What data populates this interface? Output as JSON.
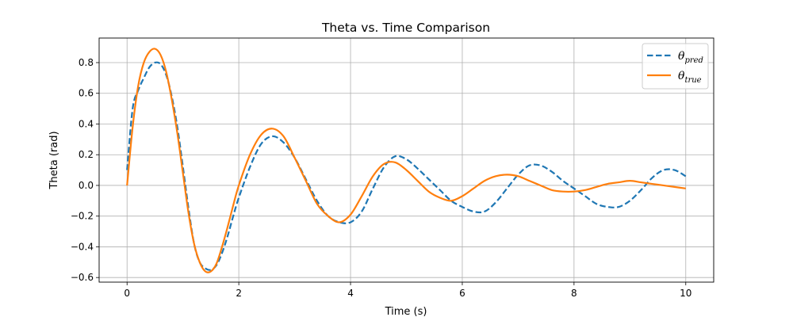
{
  "chart_data": {
    "type": "line",
    "title": "Theta vs. Time Comparison",
    "xlabel": "Time (s)",
    "ylabel": "Theta (rad)",
    "xlim": [
      -0.5,
      10.5
    ],
    "ylim": [
      -0.63,
      0.96
    ],
    "xticks": [
      0,
      2,
      4,
      6,
      8,
      10
    ],
    "xtick_labels": [
      "0",
      "2",
      "4",
      "6",
      "8",
      "10"
    ],
    "yticks": [
      -0.6,
      -0.4,
      -0.2,
      0.0,
      0.2,
      0.4,
      0.6,
      0.8
    ],
    "ytick_labels": [
      "−0.6",
      "−0.4",
      "−0.2",
      "0.0",
      "0.2",
      "0.4",
      "0.6",
      "0.8"
    ],
    "grid": true,
    "legend_position": "top-right",
    "series": [
      {
        "name": "θ",
        "subscript": "pred",
        "color": "#1f77b4",
        "style": "dashed",
        "x": [
          0,
          0.1,
          0.2,
          0.3,
          0.4,
          0.5,
          0.6,
          0.7,
          0.8,
          0.9,
          1.0,
          1.1,
          1.2,
          1.3,
          1.4,
          1.5,
          1.6,
          1.7,
          1.8,
          1.9,
          2.0,
          2.2,
          2.4,
          2.6,
          2.8,
          3.0,
          3.2,
          3.4,
          3.6,
          3.8,
          4.0,
          4.2,
          4.4,
          4.6,
          4.8,
          5.0,
          5.2,
          5.4,
          5.6,
          5.8,
          6.0,
          6.2,
          6.4,
          6.6,
          6.8,
          7.0,
          7.2,
          7.4,
          7.6,
          7.8,
          8.0,
          8.2,
          8.4,
          8.6,
          8.8,
          9.0,
          9.2,
          9.4,
          9.6,
          9.8,
          10.0
        ],
        "y": [
          0.1,
          0.5,
          0.62,
          0.7,
          0.77,
          0.8,
          0.79,
          0.72,
          0.58,
          0.38,
          0.12,
          -0.15,
          -0.38,
          -0.5,
          -0.54,
          -0.55,
          -0.52,
          -0.44,
          -0.33,
          -0.2,
          -0.08,
          0.12,
          0.27,
          0.32,
          0.28,
          0.18,
          0.04,
          -0.1,
          -0.2,
          -0.24,
          -0.24,
          -0.17,
          -0.02,
          0.12,
          0.19,
          0.17,
          0.11,
          0.04,
          -0.03,
          -0.1,
          -0.14,
          -0.17,
          -0.17,
          -0.11,
          -0.02,
          0.07,
          0.13,
          0.13,
          0.09,
          0.03,
          -0.02,
          -0.07,
          -0.12,
          -0.14,
          -0.14,
          -0.1,
          -0.03,
          0.05,
          0.1,
          0.1,
          0.06
        ]
      },
      {
        "name": "θ",
        "subscript": "true",
        "color": "#ff7f0e",
        "style": "solid",
        "x": [
          0,
          0.1,
          0.2,
          0.3,
          0.4,
          0.5,
          0.6,
          0.7,
          0.8,
          0.9,
          1.0,
          1.1,
          1.2,
          1.3,
          1.4,
          1.5,
          1.6,
          1.7,
          1.8,
          1.9,
          2.0,
          2.2,
          2.4,
          2.6,
          2.8,
          3.0,
          3.2,
          3.4,
          3.6,
          3.8,
          4.0,
          4.2,
          4.4,
          4.6,
          4.8,
          5.0,
          5.2,
          5.4,
          5.6,
          5.8,
          6.0,
          6.2,
          6.4,
          6.6,
          6.8,
          7.0,
          7.2,
          7.4,
          7.6,
          7.8,
          8.0,
          8.2,
          8.4,
          8.6,
          8.8,
          9.0,
          9.2,
          9.4,
          9.6,
          9.8,
          10.0
        ],
        "y": [
          0.0,
          0.38,
          0.65,
          0.8,
          0.87,
          0.89,
          0.85,
          0.74,
          0.56,
          0.34,
          0.08,
          -0.18,
          -0.38,
          -0.5,
          -0.56,
          -0.56,
          -0.51,
          -0.4,
          -0.27,
          -0.13,
          0.0,
          0.2,
          0.33,
          0.37,
          0.32,
          0.18,
          0.03,
          -0.12,
          -0.2,
          -0.24,
          -0.19,
          -0.07,
          0.06,
          0.14,
          0.15,
          0.1,
          0.03,
          -0.04,
          -0.08,
          -0.1,
          -0.07,
          -0.02,
          0.03,
          0.06,
          0.07,
          0.06,
          0.03,
          0.0,
          -0.03,
          -0.04,
          -0.04,
          -0.03,
          -0.01,
          0.01,
          0.02,
          0.03,
          0.02,
          0.01,
          0.0,
          -0.01,
          -0.02
        ]
      }
    ]
  }
}
